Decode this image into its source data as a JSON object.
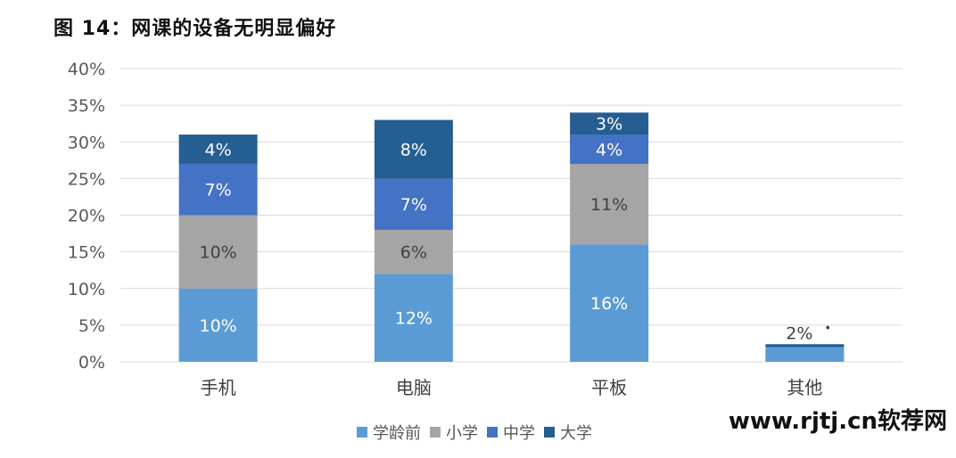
{
  "title": "图 14：网课的设备无明显偏好",
  "watermark": "www.rjtj.cn软荐网",
  "chart_data": {
    "type": "bar",
    "stacked": true,
    "categories": [
      "手机",
      "电脑",
      "平板",
      "其他"
    ],
    "series": [
      {
        "name": "学龄前",
        "color": "#5b9bd5",
        "values": [
          10,
          12,
          16,
          2
        ],
        "labels": [
          "10%",
          "12%",
          "16%",
          ""
        ]
      },
      {
        "name": "小学",
        "color": "#a5a5a5",
        "values": [
          10,
          6,
          11,
          0
        ],
        "labels": [
          "10%",
          "6%",
          "11%",
          ""
        ]
      },
      {
        "name": "中学",
        "color": "#4472c4",
        "values": [
          7,
          7,
          4,
          0
        ],
        "labels": [
          "7%",
          "7%",
          "4%",
          ""
        ]
      },
      {
        "name": "大学",
        "color": "#255e91",
        "values": [
          4,
          8,
          3,
          0.4
        ],
        "labels": [
          "4%",
          "8%",
          "3%",
          ""
        ]
      }
    ],
    "other_label": "2%",
    "other_label_suffix": "•",
    "y_ticks": [
      "0%",
      "5%",
      "10%",
      "15%",
      "20%",
      "25%",
      "30%",
      "35%",
      "40%"
    ],
    "ylim": [
      0,
      40
    ],
    "grid": true,
    "legend_position": "bottom"
  }
}
